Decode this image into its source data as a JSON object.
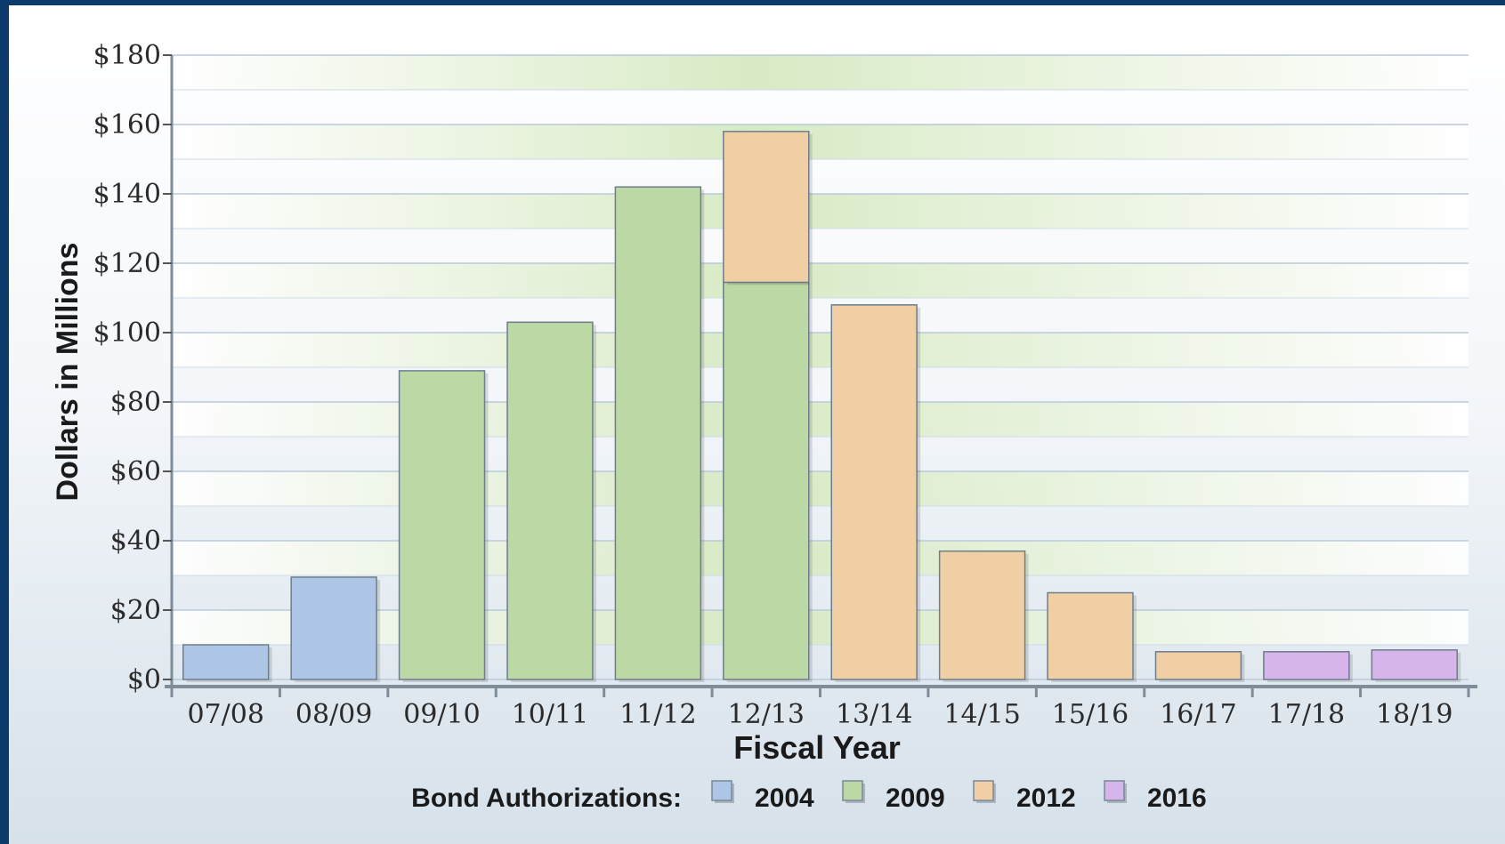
{
  "chart_data": {
    "type": "bar",
    "stacked": true,
    "categories": [
      "07/08",
      "08/09",
      "09/10",
      "10/11",
      "11/12",
      "12/13",
      "13/14",
      "14/15",
      "15/16",
      "16/17",
      "17/18",
      "18/19"
    ],
    "series": [
      {
        "name": "2004",
        "color": "#aec6e6",
        "values": [
          10,
          29.5,
          0,
          0,
          0,
          0,
          0,
          0,
          0,
          0,
          0,
          0
        ]
      },
      {
        "name": "2009",
        "color": "#bcd8a4",
        "values": [
          0,
          0,
          89,
          103,
          142,
          114.5,
          0,
          0,
          0,
          0,
          0,
          0
        ]
      },
      {
        "name": "2012",
        "color": "#efcfa3",
        "values": [
          0,
          0,
          0,
          0,
          0,
          43.5,
          108,
          37,
          25,
          8,
          0,
          0
        ]
      },
      {
        "name": "2016",
        "color": "#d5b5ea",
        "values": [
          0,
          0,
          0,
          0,
          0,
          0,
          0,
          0,
          0,
          0,
          8,
          8.5
        ]
      }
    ],
    "yticks": [
      "$0",
      "$20",
      "$40",
      "$60",
      "$80",
      "$100",
      "$120",
      "$140",
      "$160",
      "$180"
    ],
    "ylim": [
      0,
      180
    ],
    "xlabel": "Fiscal Year",
    "ylabel": "Dollars in Millions",
    "legend_title": "Bond Authorizations:",
    "legend_position": "bottom-center",
    "grid": true
  }
}
